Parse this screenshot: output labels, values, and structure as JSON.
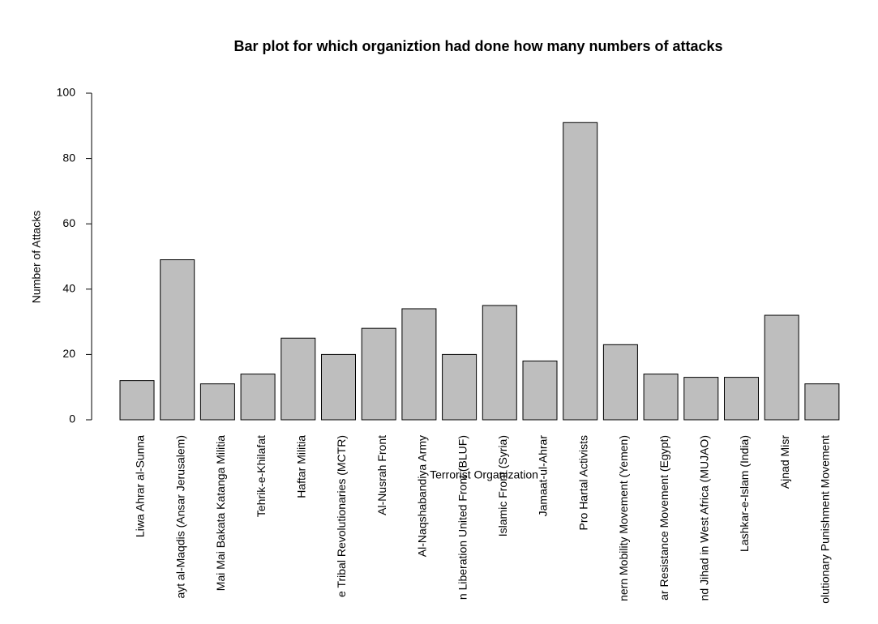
{
  "chart_data": {
    "type": "bar",
    "title": "Bar plot for which organiztion had done how many numbers of attacks",
    "x_label": "Terrorist Organization",
    "y_label": "Number of Attacks",
    "categories": [
      "Liwa Ahrar al-Sunna",
      "ayt al-Maqdis (Ansar Jerusalem)",
      "Mai Mai Bakata Katanga Militia",
      "Tehrik-e-Khilafat",
      "Haftar Militia",
      "e Tribal Revolutionaries (MCTR)",
      "Al-Nusrah Front",
      "Al-Naqshabandiya Army",
      "n Liberation United Front (BLUF)",
      "Islamic Front (Syria)",
      "Jamaat-ul-Ahrar",
      "Pro Hartal Activists",
      "nern Mobility Movement (Yemen)",
      "ar Resistance Movement (Egypt)",
      "nd Jihad in West Africa (MUJAO)",
      "Lashkar-e-Islam (India)",
      "Ajnad Misr",
      "olutionary Punishment Movement"
    ],
    "values": [
      12,
      49,
      11,
      14,
      25,
      20,
      28,
      34,
      20,
      35,
      18,
      91,
      23,
      14,
      13,
      13,
      32,
      11
    ],
    "color": "#bebebe",
    "ylim": [
      0,
      100
    ],
    "yticks": [
      0,
      20,
      40,
      60,
      80,
      100
    ],
    "grid": false
  }
}
